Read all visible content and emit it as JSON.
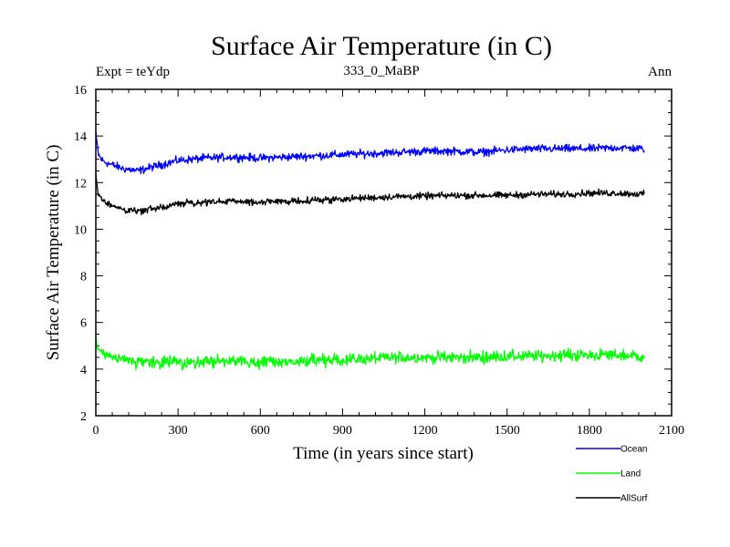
{
  "chart_data": {
    "type": "line",
    "title": "Surface Air Temperature (in C)",
    "subtitle_left": "Expt = teYdp",
    "subtitle_center": "333_0_MaBP",
    "subtitle_right": "Ann",
    "xlabel": "Time (in years since start)",
    "ylabel": "Surface Air Temperature (in C)",
    "xlim": [
      0,
      2100
    ],
    "ylim": [
      2,
      16
    ],
    "xticks": [
      0,
      300,
      600,
      900,
      1200,
      1500,
      1800,
      2100
    ],
    "yticks": [
      2,
      4,
      6,
      8,
      10,
      12,
      14,
      16
    ],
    "series": [
      {
        "name": "Ocean",
        "color": "#0000ff",
        "x": [
          0,
          5,
          10,
          20,
          30,
          50,
          75,
          100,
          130,
          150,
          170,
          200,
          250,
          300,
          400,
          500,
          600,
          700,
          800,
          900,
          1000,
          1100,
          1200,
          1300,
          1400,
          1500,
          1600,
          1700,
          1800,
          1900,
          2000
        ],
        "values": [
          14.2,
          13.6,
          13.2,
          13.0,
          12.9,
          12.8,
          12.7,
          12.6,
          12.55,
          12.5,
          12.55,
          12.65,
          12.8,
          12.95,
          13.05,
          13.1,
          13.05,
          13.1,
          13.15,
          13.2,
          13.25,
          13.3,
          13.35,
          13.35,
          13.3,
          13.4,
          13.45,
          13.45,
          13.45,
          13.5,
          13.45
        ],
        "noise": 0.12
      },
      {
        "name": "Land",
        "color": "#00ff00",
        "x": [
          0,
          5,
          10,
          20,
          30,
          50,
          75,
          100,
          150,
          200,
          300,
          400,
          500,
          600,
          700,
          800,
          900,
          1000,
          1100,
          1200,
          1300,
          1400,
          1500,
          1600,
          1700,
          1800,
          1900,
          2000
        ],
        "values": [
          5.4,
          5.0,
          4.8,
          4.7,
          4.6,
          4.5,
          4.45,
          4.4,
          4.3,
          4.28,
          4.3,
          4.3,
          4.35,
          4.3,
          4.3,
          4.35,
          4.4,
          4.45,
          4.5,
          4.5,
          4.5,
          4.5,
          4.55,
          4.55,
          4.6,
          4.6,
          4.6,
          4.55
        ],
        "noise": 0.18
      },
      {
        "name": "AllSurf",
        "color": "#000000",
        "x": [
          0,
          5,
          10,
          20,
          30,
          50,
          75,
          100,
          130,
          150,
          170,
          200,
          250,
          300,
          400,
          500,
          600,
          700,
          800,
          900,
          1000,
          1100,
          1200,
          1300,
          1400,
          1500,
          1600,
          1700,
          1800,
          1900,
          2000
        ],
        "values": [
          12.4,
          11.8,
          11.5,
          11.3,
          11.2,
          11.05,
          10.95,
          10.85,
          10.8,
          10.78,
          10.8,
          10.85,
          10.95,
          11.1,
          11.15,
          11.2,
          11.15,
          11.2,
          11.25,
          11.3,
          11.35,
          11.4,
          11.42,
          11.45,
          11.45,
          11.45,
          11.5,
          11.5,
          11.55,
          11.55,
          11.5
        ],
        "noise": 0.1
      }
    ]
  }
}
